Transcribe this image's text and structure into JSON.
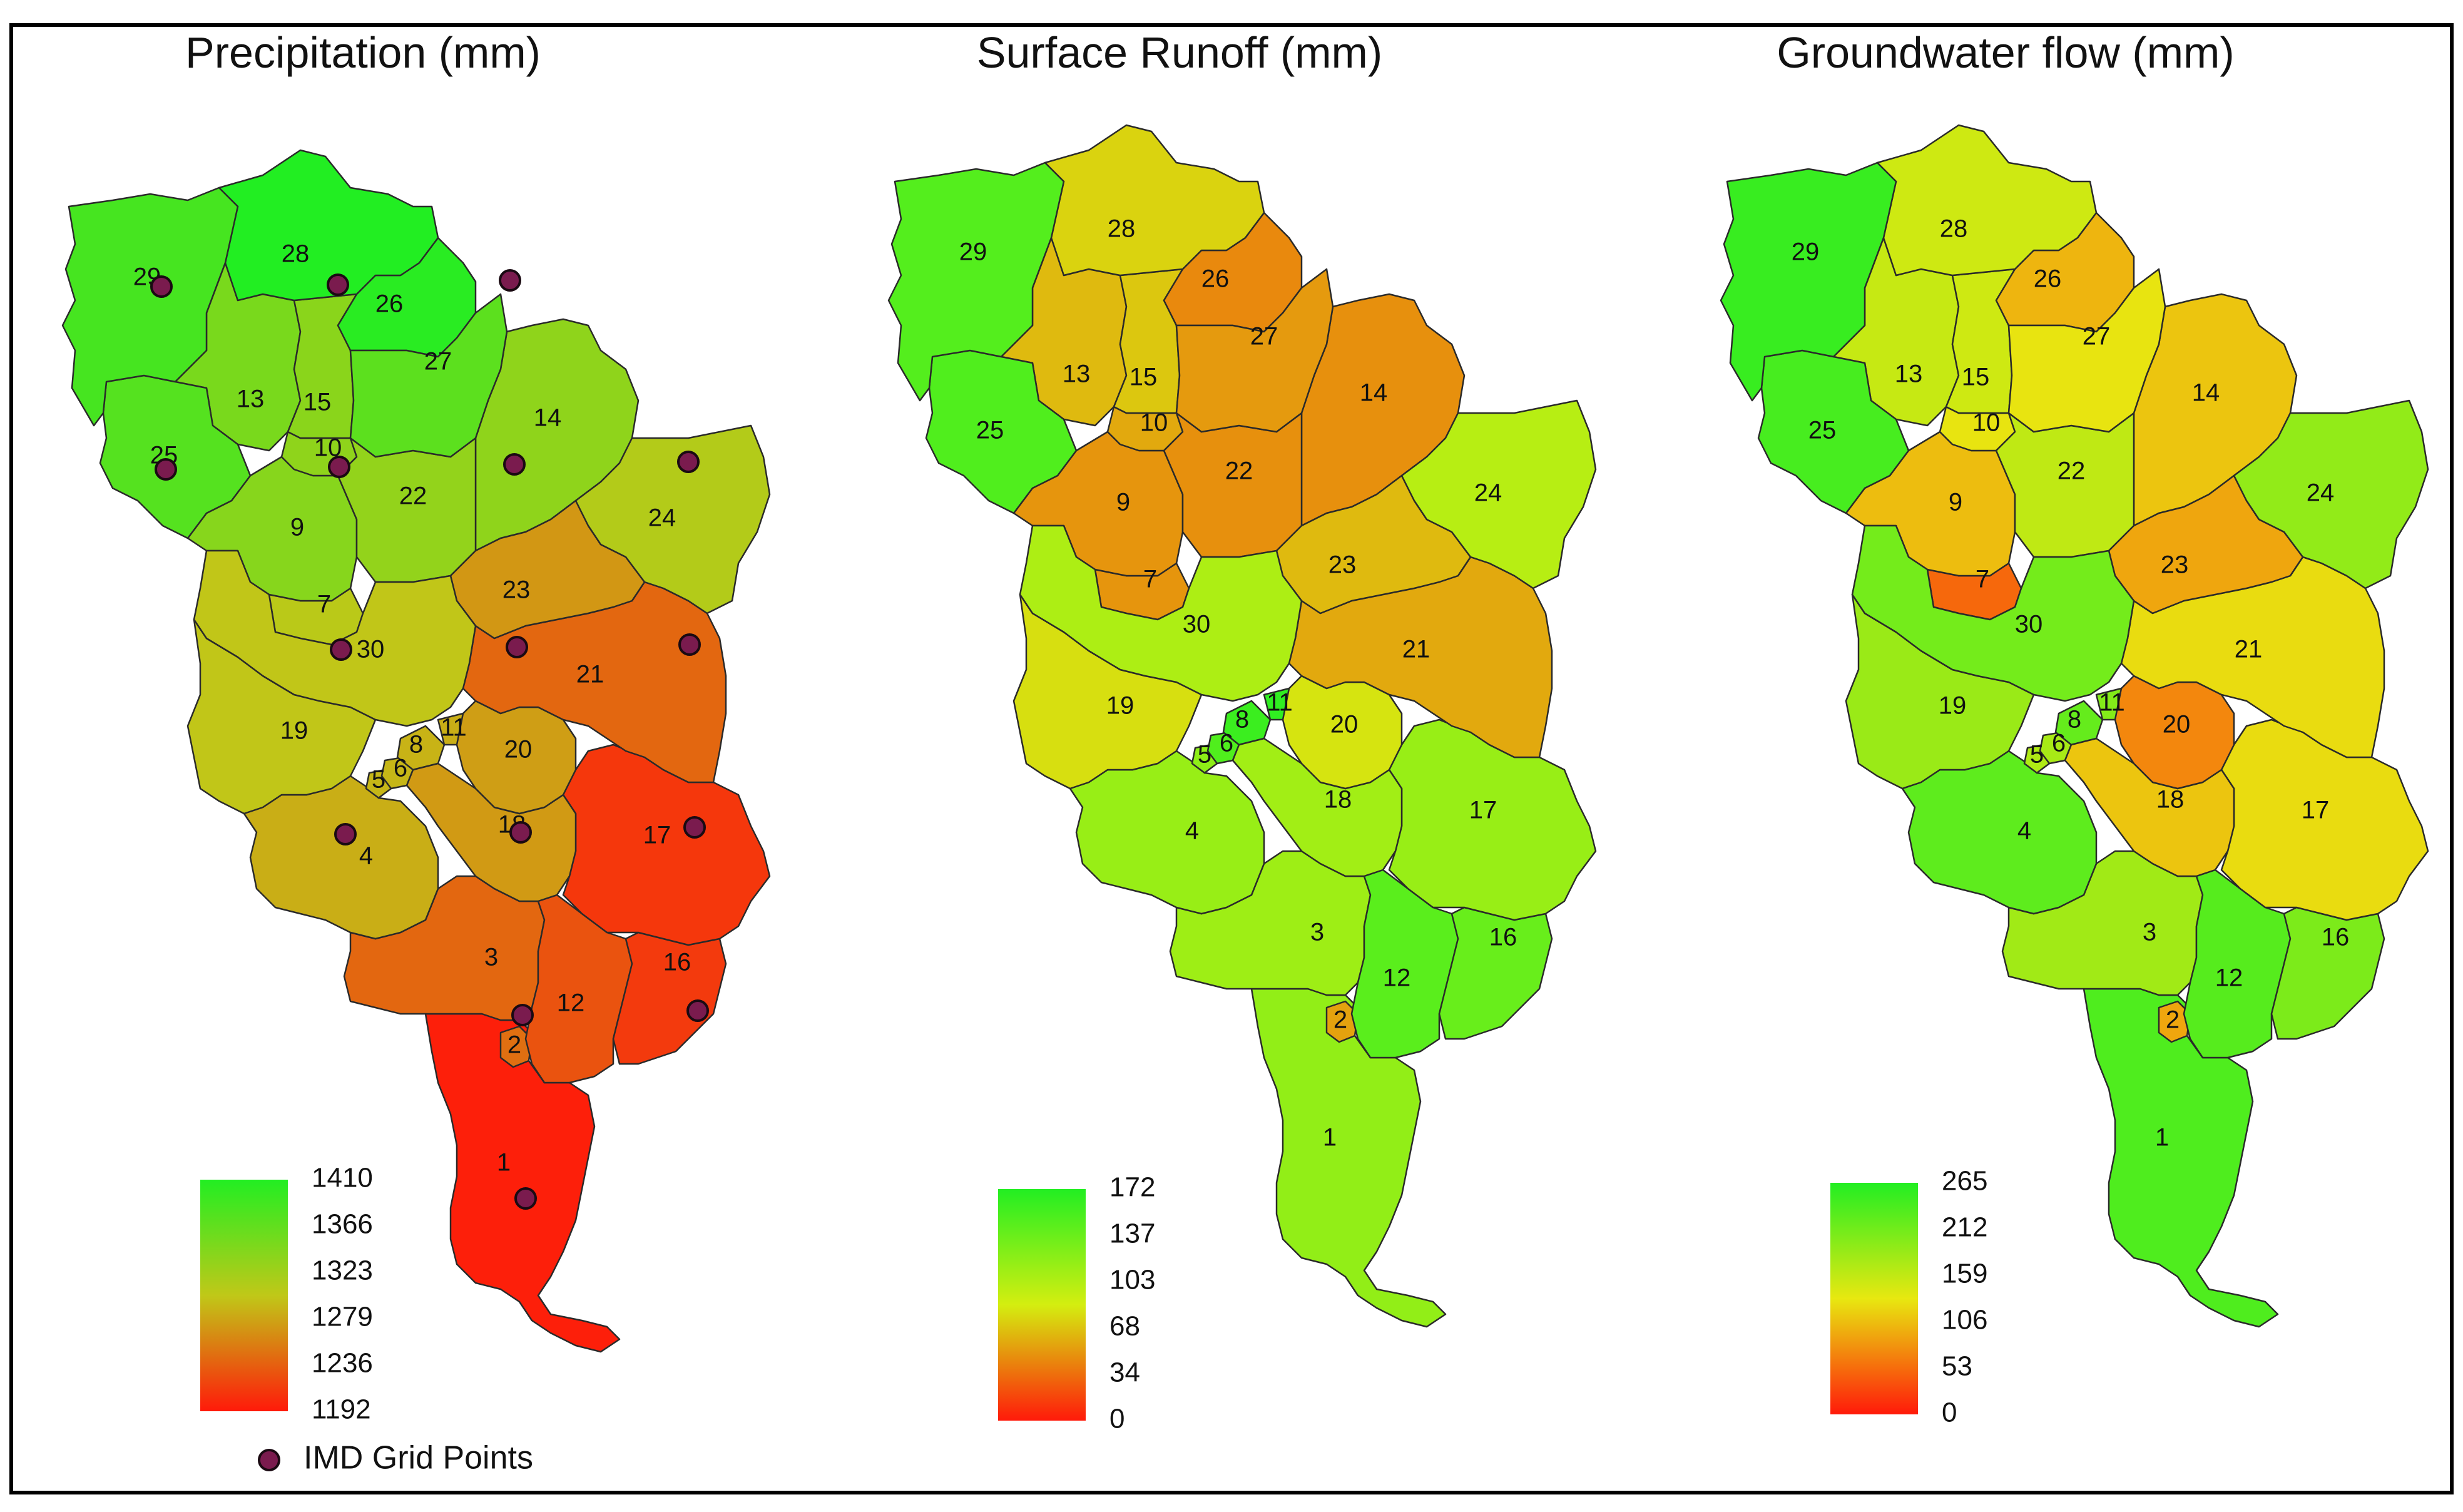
{
  "panels": [
    {
      "id": "precip",
      "title": "Precipitation (mm)",
      "legend": {
        "ticks": [
          "1410",
          "1366",
          "1323",
          "1279",
          "1236",
          "1192"
        ],
        "colors": [
          "#22ee22",
          "#c0c818",
          "#ff1a0a"
        ]
      },
      "values": {
        "1": 1195,
        "2": 1245,
        "3": 1240,
        "4": 1285,
        "5": 1290,
        "6": 1290,
        "7": 1305,
        "8": 1288,
        "9": 1340,
        "10": 1335,
        "11": 1285,
        "12": 1228,
        "13": 1350,
        "14": 1335,
        "15": 1338,
        "16": 1212,
        "17": 1210,
        "18": 1272,
        "19": 1300,
        "20": 1275,
        "21": 1240,
        "22": 1332,
        "23": 1270,
        "24": 1310,
        "25": 1375,
        "26": 1405,
        "27": 1370,
        "28": 1410,
        "29": 1385,
        "30": 1300
      }
    },
    {
      "id": "runoff",
      "title": "Surface Runoff (mm)",
      "legend": {
        "ticks": [
          "172",
          "137",
          "103",
          "68",
          "34",
          "0"
        ],
        "colors": [
          "#22ee22",
          "#d4ee10",
          "#ff1a0a"
        ]
      },
      "values": {
        "1": 118,
        "2": 55,
        "3": 112,
        "4": 115,
        "5": 120,
        "6": 150,
        "7": 50,
        "8": 160,
        "9": 50,
        "10": 58,
        "11": 165,
        "12": 145,
        "13": 65,
        "14": 48,
        "15": 70,
        "16": 138,
        "17": 115,
        "18": 110,
        "19": 80,
        "20": 82,
        "21": 58,
        "22": 48,
        "23": 65,
        "24": 100,
        "25": 150,
        "26": 45,
        "27": 52,
        "28": 75,
        "29": 148,
        "30": 105
      }
    },
    {
      "id": "gw",
      "title": "Groundwater flow (mm)",
      "legend": {
        "ticks": [
          "265",
          "212",
          "159",
          "106",
          "53",
          "0"
        ],
        "colors": [
          "#22ee22",
          "#e8e810",
          "#ff1a0a"
        ]
      },
      "values": {
        "1": 235,
        "2": 90,
        "3": 180,
        "4": 225,
        "5": 170,
        "6": 175,
        "7": 50,
        "8": 220,
        "9": 105,
        "10": 130,
        "11": 200,
        "12": 230,
        "13": 155,
        "14": 110,
        "15": 150,
        "16": 205,
        "17": 125,
        "18": 110,
        "19": 185,
        "20": 70,
        "21": 125,
        "22": 160,
        "23": 90,
        "24": 190,
        "25": 240,
        "26": 100,
        "27": 130,
        "28": 150,
        "29": 250,
        "30": 210
      }
    }
  ],
  "grid_points_legend": "IMD Grid Points"
}
